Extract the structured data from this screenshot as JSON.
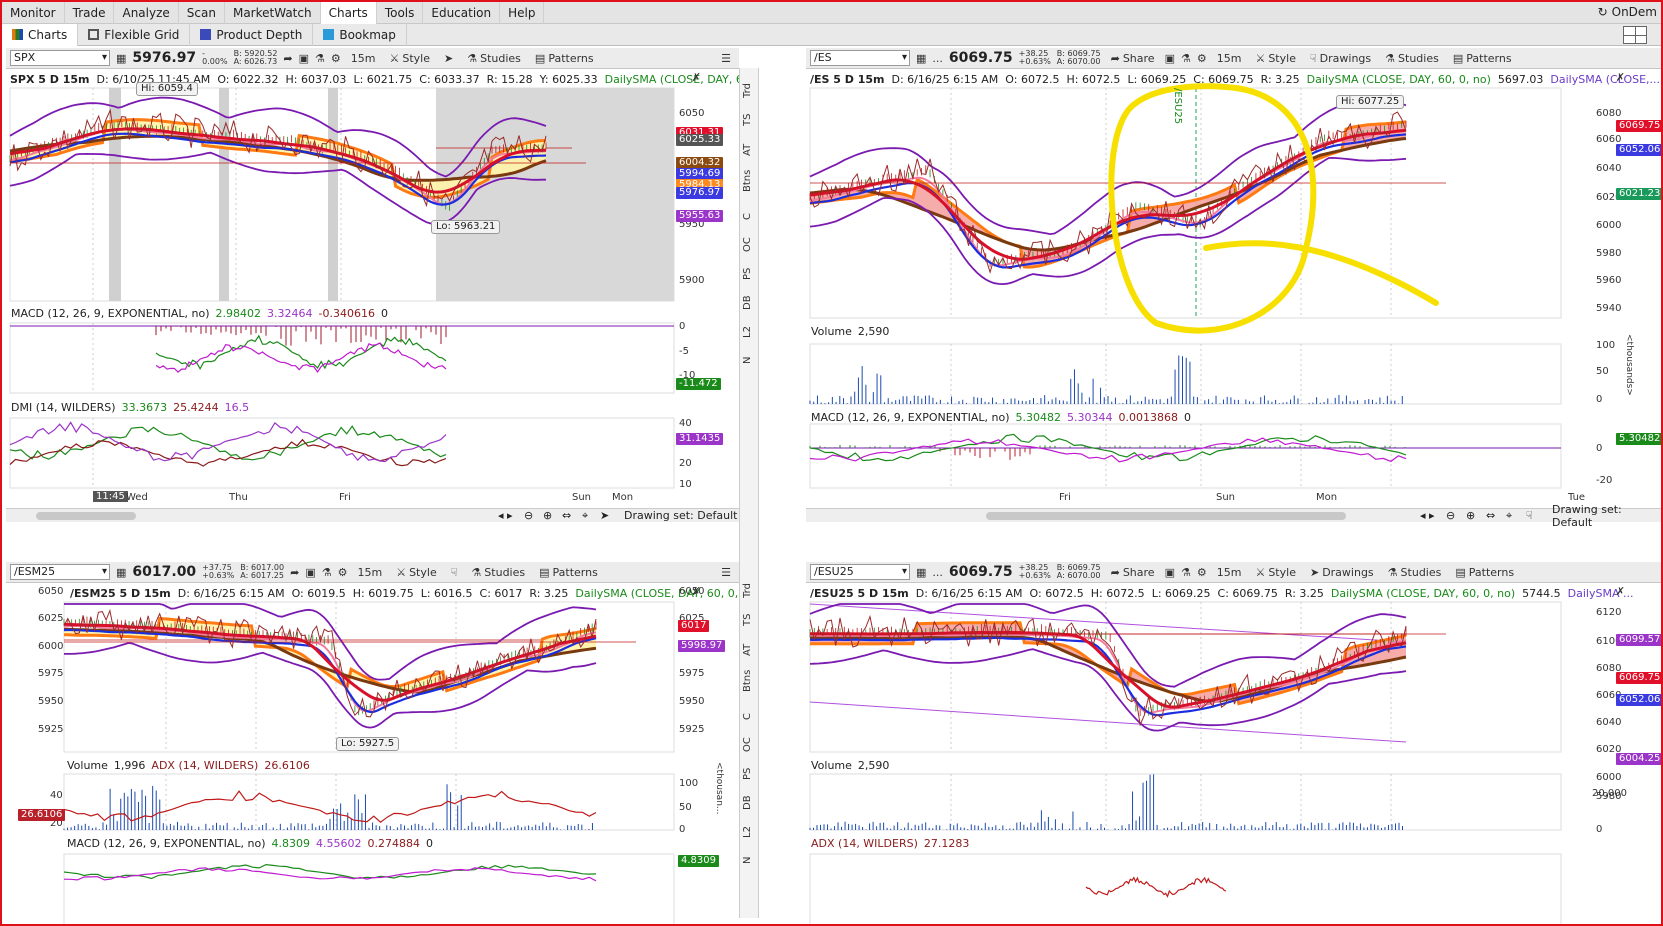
{
  "menu": [
    "Monitor",
    "Trade",
    "Analyze",
    "Scan",
    "MarketWatch",
    "Charts",
    "Tools",
    "Education",
    "Help"
  ],
  "menu_active": "Charts",
  "ondemand": "OnDem",
  "subtabs": [
    "Charts",
    "Flexible Grid",
    "Product Depth",
    "Bookmap"
  ],
  "toolbar": {
    "share": "Share",
    "style": "Style",
    "drawings": "Drawings",
    "studies": "Studies",
    "patterns": "Patterns",
    "interval": "15m",
    "dots": "..."
  },
  "p1": {
    "symbol": "SPX",
    "price": "5976.97",
    "chg1": "-",
    "chg2": "0.00%",
    "bid": "B: 5920.52",
    "ask": "A: 6026.73",
    "hdr": {
      "sym": "SPX 5 D 15m",
      "d": "D: 6/10/25 11:45 AM",
      "o": "O: 6022.32",
      "h": "H: 6037.03",
      "l": "L: 6021.75",
      "c": "C: 6033.37",
      "r": "R: 15.28",
      "y": "Y: 6025.33",
      "sma": "DailySMA (CLOSE, DAY, 60,..."
    },
    "yticks": [
      "6050",
      "6000",
      "5950",
      "5900"
    ],
    "tags": [
      "6031.31",
      "6025.33",
      "6004.32",
      "5994.69",
      "5984.13",
      "5976.97",
      "5955.63"
    ],
    "hi": "Hi: 6059.4",
    "lo": "Lo: 5963.21",
    "macd": {
      "label": "MACD (12, 26, 9, EXPONENTIAL, no)",
      "v1": "2.98402",
      "v2": "3.32464",
      "v3": "-0.340616",
      "v4": "0",
      "ticks": [
        "0",
        "-5",
        "-10"
      ],
      "tag": "-11.472"
    },
    "dmi": {
      "label": "DMI (14, WILDERS)",
      "v1": "33.3673",
      "v2": "25.4244",
      "v3": "16.5",
      "ticks": [
        "40",
        "30",
        "20",
        "10"
      ],
      "tag": "31.1435"
    },
    "xticks": [
      "Wed",
      "Thu",
      "Fri",
      "Sun",
      "Mon"
    ],
    "xcursor": "11:45",
    "drawing_set": "Drawing set: Default"
  },
  "p2": {
    "symbol": "/ES",
    "price": "6069.75",
    "chg1": "+38.25",
    "chg2": "+0.63%",
    "bid": "B: 6069.75",
    "ask": "A: 6070.00",
    "hdr": {
      "sym": "/ES 5 D 15m",
      "d": "D: 6/16/25 6:15 AM",
      "o": "O: 6072.5",
      "h": "H: 6072.5",
      "l": "L: 6069.25",
      "c": "C: 6069.75",
      "r": "R: 3.25",
      "sma": "DailySMA (CLOSE, DAY, 60, 0, no)",
      "v": "5697.03",
      "sma2": "DailySMA (CLOSE,..."
    },
    "yticks": [
      "6080",
      "6060",
      "6040",
      "6020",
      "6000",
      "5980",
      "5960",
      "5940"
    ],
    "tags": [
      "6069.75",
      "6052.06",
      "6021.23"
    ],
    "hi": "Hi: 6077.25",
    "rollover": "/ESU25",
    "volume": {
      "label": "Volume",
      "v": "2,590",
      "ticks": [
        "100",
        "50",
        "0"
      ],
      "unit": "<thousands>"
    },
    "macd": {
      "label": "MACD (12, 26, 9, EXPONENTIAL, no)",
      "v1": "5.30482",
      "v2": "5.30344",
      "v3": "0.0013868",
      "v4": "0",
      "ticks": [
        "0",
        "-20"
      ],
      "tag": "5.30482"
    },
    "xticks": [
      "Fri",
      "Sun",
      "Mon",
      "Tue"
    ],
    "drawing_set": "Drawing set: Default"
  },
  "p3": {
    "symbol": "/ESM25",
    "price": "6017.00",
    "chg1": "+37.75",
    "chg2": "+0.63%",
    "bid": "B: 6017.00",
    "ask": "A: 6017.25",
    "hdr": {
      "sym": "/ESM25 5 D 15m",
      "d": "D: 6/16/25 6:15 AM",
      "o": "O: 6019.5",
      "h": "H: 6019.75",
      "l": "L: 6016.5",
      "c": "C: 6017",
      "r": "R: 3.25",
      "sma": "DailySMA (CLOSE, DAY, 60, 0, no)"
    },
    "yticks_left": [
      "6050",
      "6025",
      "6000",
      "5975",
      "5950",
      "5925"
    ],
    "yticks": [
      "6050",
      "6025",
      "6000",
      "5975",
      "5950",
      "5925"
    ],
    "tags": [
      "6017",
      "5998.97"
    ],
    "lo": "Lo: 5927.5",
    "volume": {
      "label": "Volume",
      "v": "1,996",
      "adx": "ADX (14, WILDERS)",
      "adxv": "26.6106",
      "ticks": [
        "100",
        "50",
        "0"
      ],
      "lticks": [
        "40",
        "20"
      ],
      "tag": "26.6106",
      "unit": "<thousan..."
    },
    "macd": {
      "label": "MACD (12, 26, 9, EXPONENTIAL, no)",
      "v1": "4.8309",
      "v2": "4.55602",
      "v3": "0.274884",
      "v4": "0",
      "tag": "4.8309"
    }
  },
  "p4": {
    "symbol": "/ESU25",
    "price": "6069.75",
    "chg1": "+38.25",
    "chg2": "+0.63%",
    "bid": "B: 6069.75",
    "ask": "A: 6070.00",
    "hdr": {
      "sym": "/ESU25 5 D 15m",
      "d": "D: 6/16/25 6:15 AM",
      "o": "O: 6072.5",
      "h": "H: 6072.5",
      "l": "L: 6069.25",
      "c": "C: 6069.75",
      "r": "R: 3.25",
      "sma": "DailySMA (CLOSE, DAY, 60, 0, no)",
      "v": "5744.5",
      "sma2": "DailySMA ..."
    },
    "yticks": [
      "6120",
      "6100",
      "6080",
      "6060",
      "6040",
      "6020",
      "6000",
      "5980"
    ],
    "tags": [
      "6099.57",
      "6069.75",
      "6052.06",
      "6004.25"
    ],
    "volume": {
      "label": "Volume",
      "v": "2,590",
      "ticks": [
        "20,000",
        "0"
      ]
    },
    "adx": {
      "label": "ADX (14, WILDERS)",
      "v": "27.1283"
    }
  },
  "vtabs": [
    "Trd",
    "TS",
    "AT",
    "Btns",
    "C",
    "OC",
    "PS",
    "DB",
    "L2",
    "N"
  ],
  "colors": {
    "red": "#d8102a",
    "blue": "#1a2ee0",
    "purple": "#7a1ab0",
    "orange": "#ff7a10",
    "brown": "#7a3a10",
    "pink": "#f47aa0",
    "yellow": "#f7e000",
    "cloud": "#fff4a8"
  }
}
